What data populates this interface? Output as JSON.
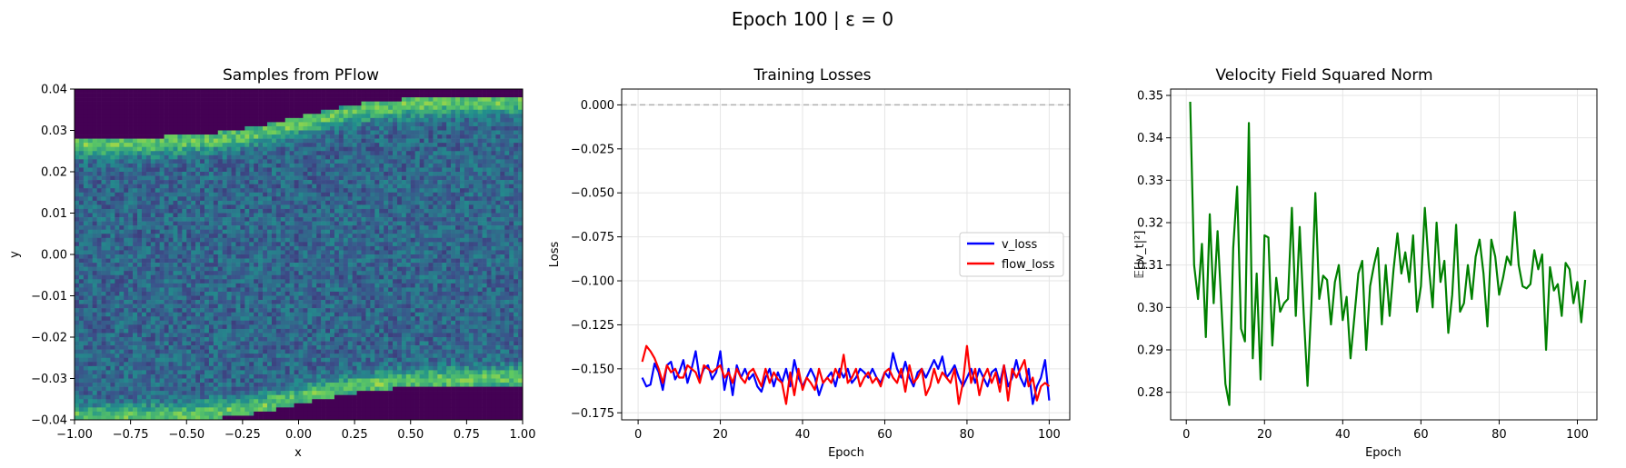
{
  "figure": {
    "title": "Epoch 100 | ε = 0"
  },
  "chart_data": [
    {
      "type": "heatmap",
      "title": "Samples from PFlow",
      "xlabel": "x",
      "ylabel": "y",
      "xlim": [
        -1.0,
        1.0
      ],
      "ylim": [
        -0.04,
        0.04
      ],
      "xticks": [
        "−1.00",
        "−0.75",
        "−0.50",
        "−0.25",
        "0.00",
        "0.25",
        "0.50",
        "0.75",
        "1.00"
      ],
      "yticks": [
        "0.04",
        "0.03",
        "0.02",
        "0.01",
        "0.00",
        "−0.01",
        "−0.02",
        "−0.03",
        "−0.04"
      ],
      "colormap": [
        "#440154",
        "#3b528b",
        "#21918c",
        "#5ec962",
        "#fde725"
      ],
      "grid": false
    },
    {
      "type": "line",
      "title": "Training Losses",
      "xlabel": "Epoch",
      "ylabel": "Loss",
      "xlim": [
        -4,
        105
      ],
      "ylim": [
        -0.179,
        0.009
      ],
      "xticks": [
        "0",
        "20",
        "40",
        "60",
        "80",
        "100"
      ],
      "yticks": [
        "0.000",
        "−0.025",
        "−0.050",
        "−0.075",
        "−0.100",
        "−0.125",
        "−0.150",
        "−0.175"
      ],
      "grid": true,
      "legend": "center-right",
      "reference_line": {
        "y": 0.0,
        "color": "#b0b0b0",
        "style": "dashed"
      },
      "series": [
        {
          "name": "v_loss",
          "color": "#0000ff",
          "values": [
            -0.155,
            -0.16,
            -0.159,
            -0.147,
            -0.152,
            -0.162,
            -0.148,
            -0.146,
            -0.156,
            -0.152,
            -0.145,
            -0.158,
            -0.15,
            -0.14,
            -0.156,
            -0.15,
            -0.148,
            -0.156,
            -0.152,
            -0.14,
            -0.162,
            -0.15,
            -0.165,
            -0.148,
            -0.155,
            -0.15,
            -0.156,
            -0.153,
            -0.16,
            -0.163,
            -0.155,
            -0.15,
            -0.16,
            -0.152,
            -0.158,
            -0.15,
            -0.16,
            -0.145,
            -0.155,
            -0.16,
            -0.155,
            -0.15,
            -0.155,
            -0.165,
            -0.158,
            -0.155,
            -0.152,
            -0.16,
            -0.15,
            -0.155,
            -0.15,
            -0.158,
            -0.155,
            -0.15,
            -0.152,
            -0.155,
            -0.15,
            -0.155,
            -0.158,
            -0.152,
            -0.155,
            -0.141,
            -0.15,
            -0.155,
            -0.146,
            -0.155,
            -0.16,
            -0.152,
            -0.15,
            -0.155,
            -0.15,
            -0.145,
            -0.15,
            -0.143,
            -0.155,
            -0.152,
            -0.148,
            -0.155,
            -0.16,
            -0.155,
            -0.15,
            -0.158,
            -0.15,
            -0.155,
            -0.16,
            -0.152,
            -0.15,
            -0.158,
            -0.148,
            -0.16,
            -0.155,
            -0.145,
            -0.155,
            -0.16,
            -0.15,
            -0.17,
            -0.16,
            -0.155,
            -0.145,
            -0.168
          ]
        },
        {
          "name": "flow_loss",
          "color": "#ff0000",
          "values": [
            -0.146,
            -0.137,
            -0.14,
            -0.144,
            -0.15,
            -0.158,
            -0.148,
            -0.152,
            -0.15,
            -0.155,
            -0.155,
            -0.148,
            -0.15,
            -0.152,
            -0.158,
            -0.148,
            -0.15,
            -0.152,
            -0.15,
            -0.148,
            -0.155,
            -0.152,
            -0.158,
            -0.15,
            -0.155,
            -0.158,
            -0.152,
            -0.15,
            -0.155,
            -0.16,
            -0.15,
            -0.158,
            -0.152,
            -0.156,
            -0.158,
            -0.17,
            -0.152,
            -0.165,
            -0.15,
            -0.162,
            -0.155,
            -0.158,
            -0.162,
            -0.15,
            -0.158,
            -0.155,
            -0.158,
            -0.15,
            -0.155,
            -0.142,
            -0.158,
            -0.155,
            -0.15,
            -0.16,
            -0.155,
            -0.152,
            -0.158,
            -0.155,
            -0.16,
            -0.152,
            -0.15,
            -0.155,
            -0.158,
            -0.15,
            -0.163,
            -0.148,
            -0.158,
            -0.155,
            -0.15,
            -0.165,
            -0.16,
            -0.15,
            -0.158,
            -0.152,
            -0.155,
            -0.158,
            -0.15,
            -0.17,
            -0.158,
            -0.137,
            -0.158,
            -0.15,
            -0.165,
            -0.155,
            -0.15,
            -0.158,
            -0.152,
            -0.163,
            -0.148,
            -0.168,
            -0.15,
            -0.155,
            -0.15,
            -0.145,
            -0.16,
            -0.155,
            -0.168,
            -0.16,
            -0.158,
            -0.16
          ]
        }
      ]
    },
    {
      "type": "line",
      "title": "Velocity Field Squared Norm",
      "xlabel": "Epoch",
      "ylabel": "𝔼[|v_t|²]",
      "xlim": [
        -4,
        105
      ],
      "ylim": [
        0.2735,
        0.3515
      ],
      "xticks": [
        "0",
        "20",
        "40",
        "60",
        "80",
        "100"
      ],
      "yticks": [
        "0.35",
        "0.34",
        "0.33",
        "0.32",
        "0.31",
        "0.30",
        "0.29",
        "0.28"
      ],
      "grid": true,
      "series": [
        {
          "color": "#008000",
          "values": [
            0.3485,
            0.31,
            0.302,
            0.315,
            0.293,
            0.322,
            0.301,
            0.318,
            0.3,
            0.282,
            0.277,
            0.314,
            0.3285,
            0.295,
            0.292,
            0.3435,
            0.288,
            0.308,
            0.283,
            0.317,
            0.3165,
            0.291,
            0.307,
            0.299,
            0.301,
            0.302,
            0.3235,
            0.298,
            0.319,
            0.299,
            0.2815,
            0.301,
            0.327,
            0.302,
            0.3075,
            0.3065,
            0.296,
            0.306,
            0.31,
            0.297,
            0.3025,
            0.288,
            0.298,
            0.308,
            0.311,
            0.29,
            0.305,
            0.31,
            0.314,
            0.296,
            0.31,
            0.298,
            0.309,
            0.3175,
            0.308,
            0.313,
            0.306,
            0.317,
            0.299,
            0.305,
            0.3235,
            0.31,
            0.3,
            0.32,
            0.306,
            0.311,
            0.294,
            0.303,
            0.3195,
            0.299,
            0.301,
            0.31,
            0.302,
            0.312,
            0.316,
            0.308,
            0.2955,
            0.316,
            0.312,
            0.303,
            0.307,
            0.312,
            0.31,
            0.3225,
            0.31,
            0.305,
            0.3045,
            0.3055,
            0.3135,
            0.309,
            0.3125,
            0.29,
            0.3095,
            0.304,
            0.3055,
            0.298,
            0.3105,
            0.309,
            0.301,
            0.306,
            0.2965,
            0.3065
          ]
        }
      ]
    }
  ]
}
